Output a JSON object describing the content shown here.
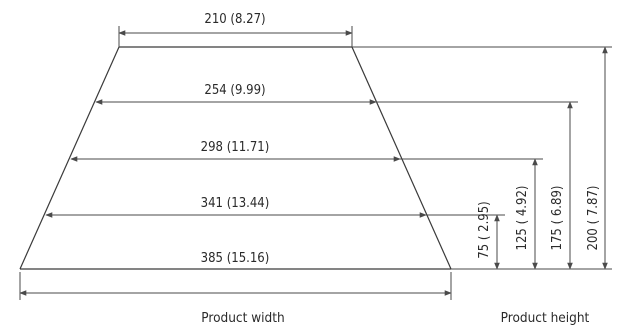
{
  "widths": [
    {
      "label": "210 (8.27)"
    },
    {
      "label": "254 (9.99)"
    },
    {
      "label": "298 (11.71)"
    },
    {
      "label": "341 (13.44)"
    },
    {
      "label": "385 (15.16)"
    }
  ],
  "heights": [
    {
      "label": "75  ( 2.95)"
    },
    {
      "label": "125  ( 4.92)"
    },
    {
      "label": "175  ( 6.89)"
    },
    {
      "label": "200  ( 7.87)"
    }
  ],
  "captions": {
    "width": "Product width",
    "height": "Product height"
  }
}
